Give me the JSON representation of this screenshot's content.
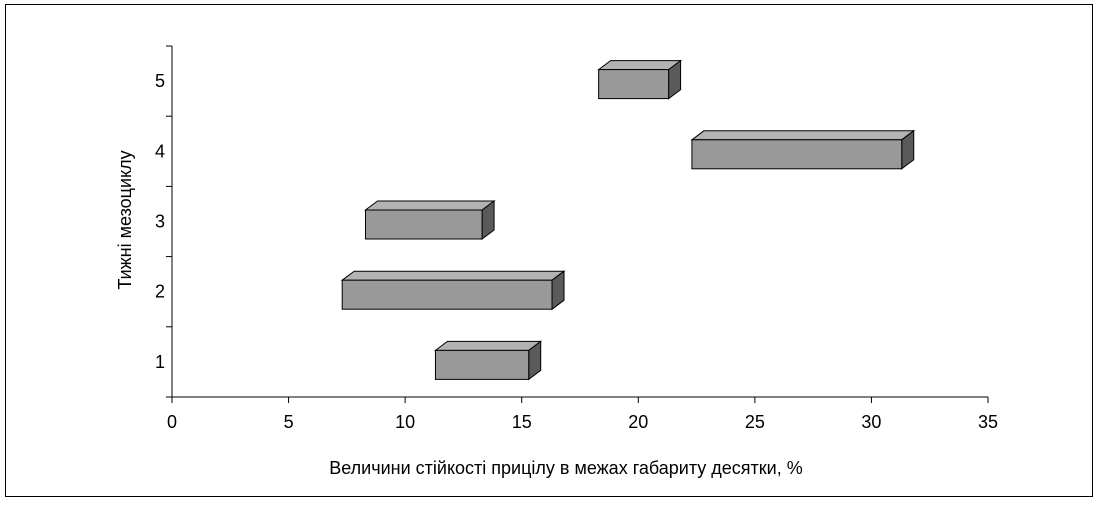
{
  "chart_data": {
    "type": "bar",
    "orientation": "horizontal",
    "style": "3d-floating-bars",
    "title": "",
    "xlabel": "Величини стійкості прицілу в межах габариту десятки, %",
    "ylabel": "Тижні мезоциклу",
    "xlim": [
      0,
      35
    ],
    "xticks": [
      "0",
      "5",
      "10",
      "15",
      "20",
      "25",
      "30",
      "35"
    ],
    "categories": [
      "1",
      "2",
      "3",
      "4",
      "5"
    ],
    "ranges": [
      {
        "category": "1",
        "start": 11.3,
        "end": 15.3
      },
      {
        "category": "2",
        "start": 7.3,
        "end": 16.3
      },
      {
        "category": "3",
        "start": 8.3,
        "end": 13.3
      },
      {
        "category": "4",
        "start": 22.3,
        "end": 31.3
      },
      {
        "category": "5",
        "start": 18.3,
        "end": 21.3
      }
    ],
    "grid": false,
    "legend": "none",
    "colors": {
      "bar_front": "#999999",
      "bar_top": "#b3b3b3",
      "bar_side": "#5a5a5a",
      "outline": "#000000",
      "frame": "#000000"
    }
  }
}
